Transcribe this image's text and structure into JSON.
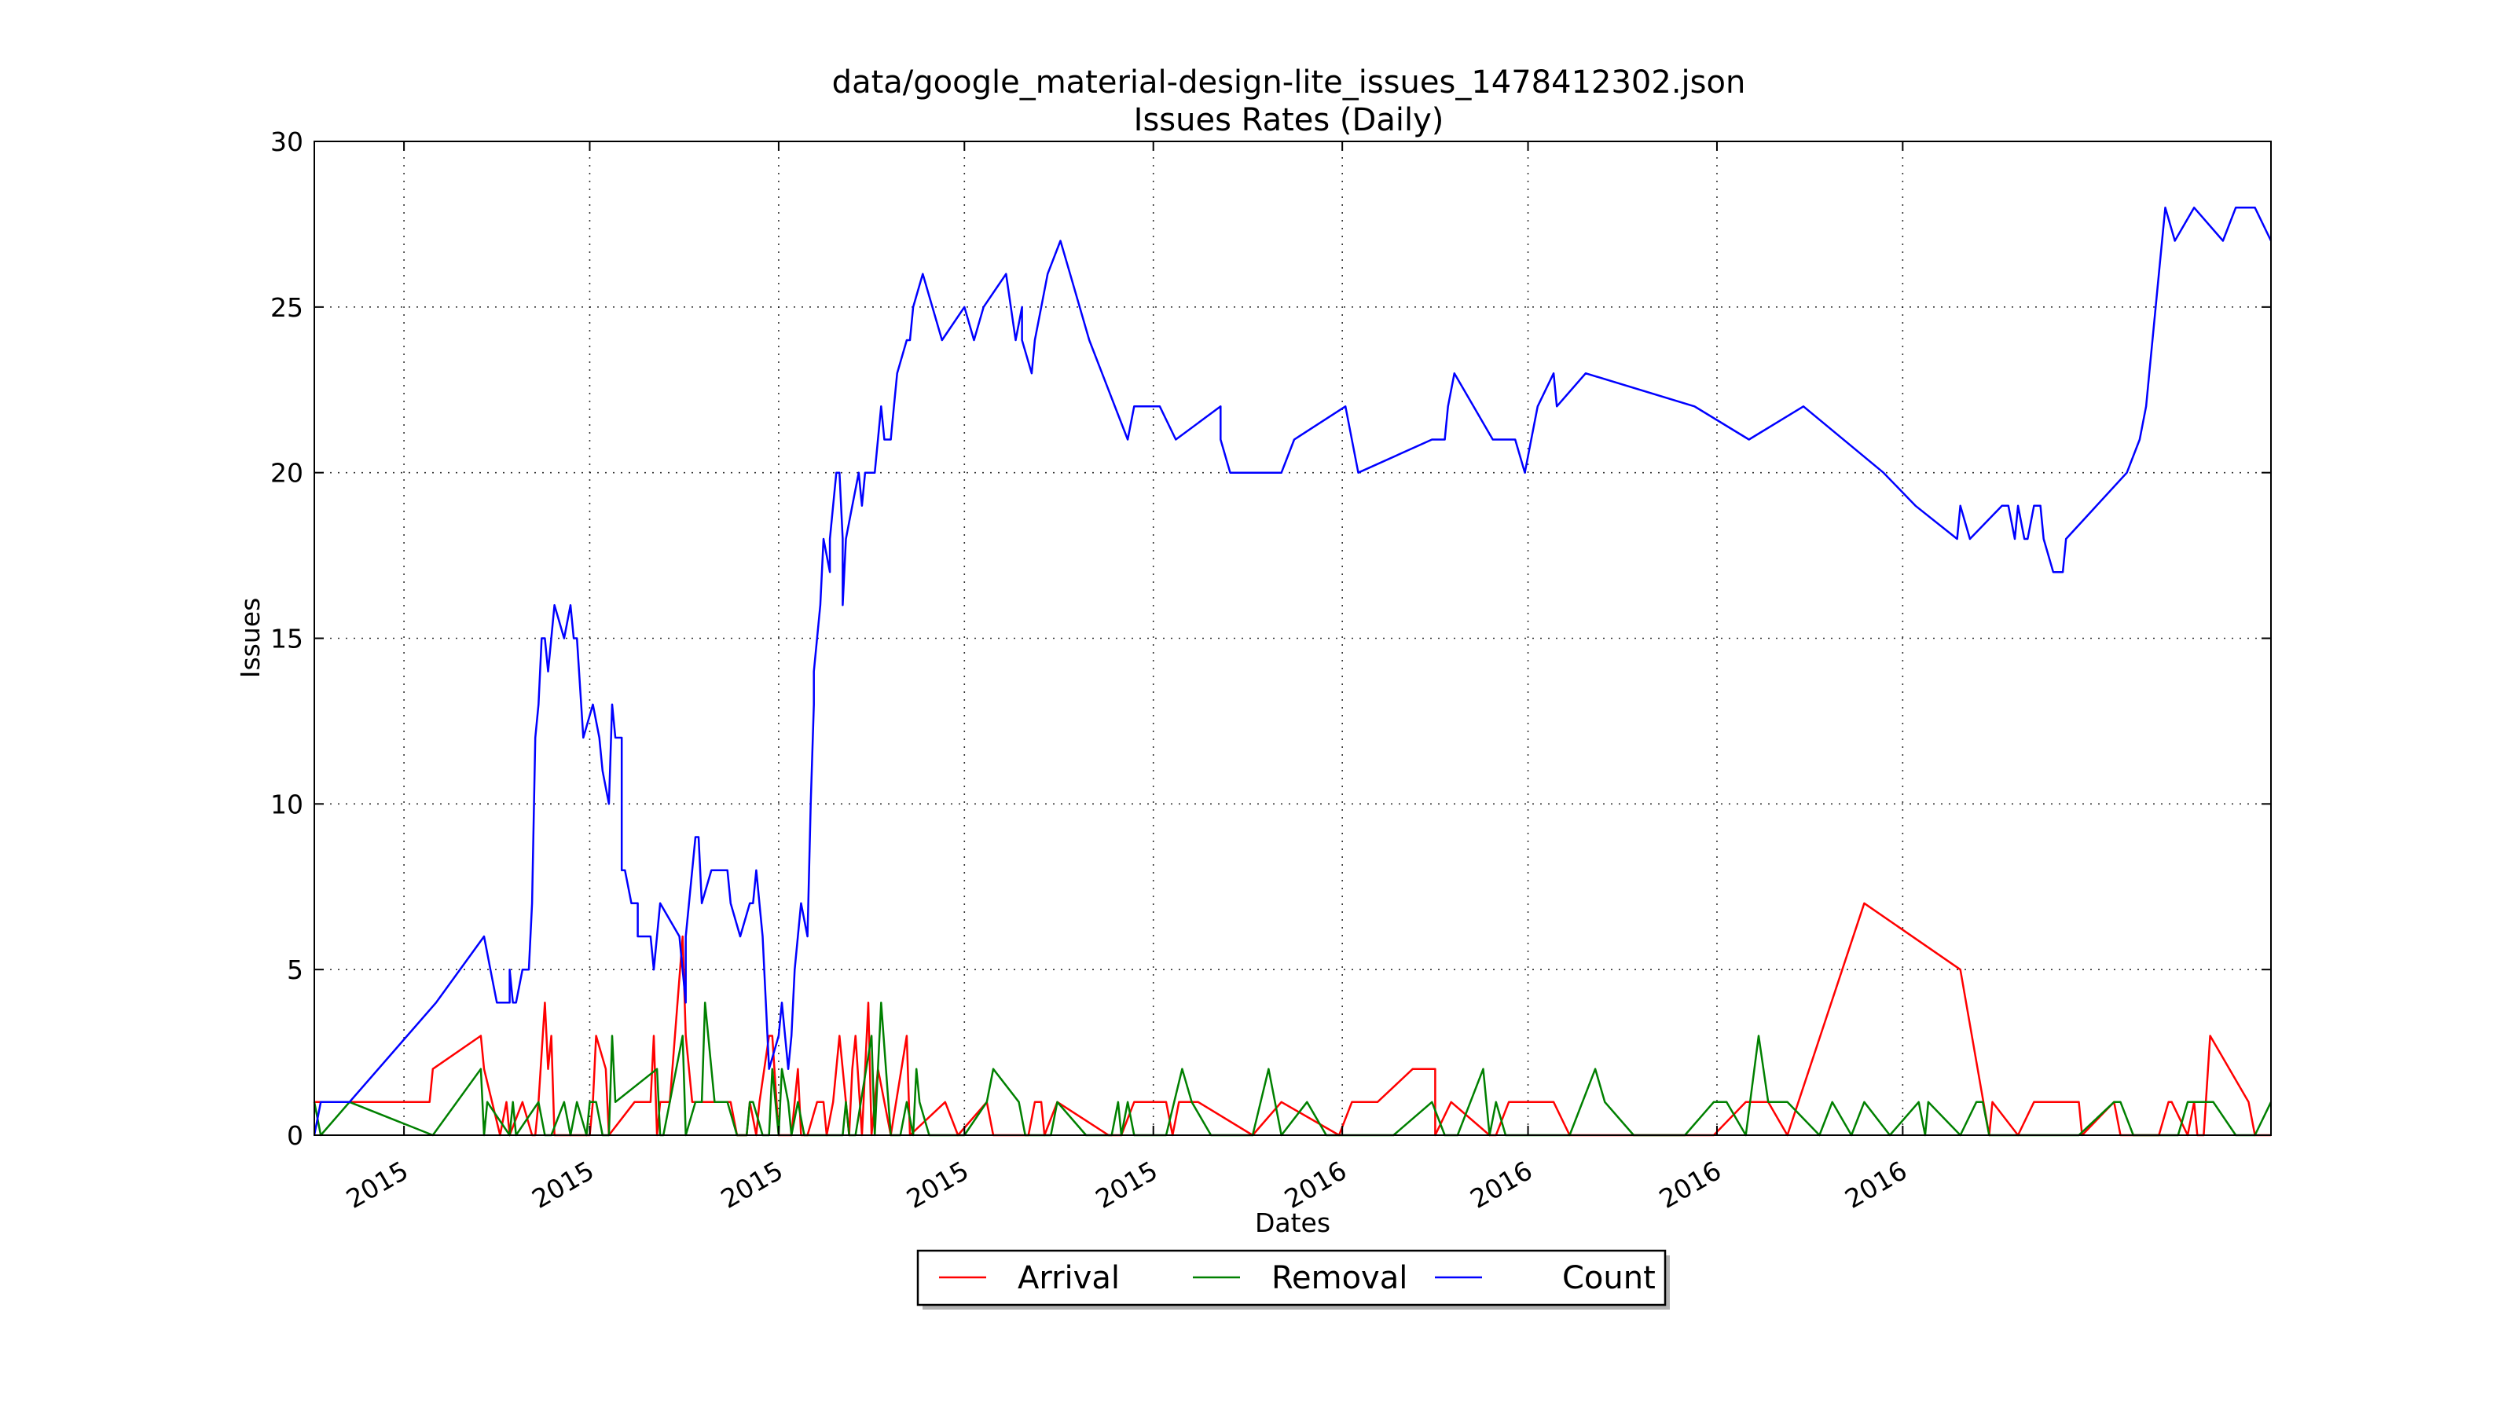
{
  "chart_data": {
    "type": "line",
    "title": "data/google_material-design-lite_issues_1478412302.json",
    "subtitle": "Issues Rates (Daily)",
    "xlabel": "Dates",
    "ylabel": "Issues",
    "ylim": [
      0,
      30
    ],
    "yticks": [
      0,
      5,
      10,
      15,
      20,
      25,
      30
    ],
    "xlim": [
      0,
      611
    ],
    "xticks": [
      {
        "x": 28,
        "label": "2015"
      },
      {
        "x": 86,
        "label": "2015"
      },
      {
        "x": 145,
        "label": "2015"
      },
      {
        "x": 203,
        "label": "2015"
      },
      {
        "x": 262,
        "label": "2015"
      },
      {
        "x": 321,
        "label": "2016"
      },
      {
        "x": 379,
        "label": "2016"
      },
      {
        "x": 438,
        "label": "2016"
      },
      {
        "x": 496,
        "label": "2016"
      }
    ],
    "grid": true,
    "legend": "bottom-center",
    "series": [
      {
        "name": "Arrival",
        "color": "#ff0000",
        "x": [
          0,
          11,
          36,
          37,
          52,
          53,
          58,
          60,
          61,
          65,
          68,
          69,
          70,
          72,
          73,
          74,
          75,
          86,
          87,
          88,
          91,
          92,
          100,
          105,
          106,
          107,
          108,
          111,
          115,
          116,
          118,
          120,
          121,
          129,
          130,
          132,
          134,
          135,
          136,
          138,
          139,
          142,
          143,
          145,
          146,
          149,
          150,
          151,
          152,
          154,
          157,
          158,
          159,
          160,
          162,
          164,
          167,
          168,
          169,
          171,
          173,
          174,
          176,
          180,
          185,
          186,
          197,
          201,
          210,
          212,
          218,
          222,
          223,
          225,
          227,
          228,
          232,
          248,
          251,
          252,
          256,
          266,
          268,
          270,
          276,
          293,
          302,
          320,
          324,
          332,
          343,
          350,
          350,
          355,
          367,
          369,
          373,
          387,
          392,
          437,
          447,
          454,
          460,
          484,
          514,
          523,
          524,
          532,
          537,
          551,
          552,
          562,
          564,
          568,
          576,
          579,
          580,
          585,
          587,
          588,
          590,
          592,
          604,
          606,
          611
        ],
        "y": [
          1,
          1,
          1,
          2,
          3,
          2,
          0,
          1,
          0,
          1,
          0,
          0,
          1,
          4,
          2,
          3,
          0,
          0,
          1,
          3,
          2,
          0,
          1,
          1,
          3,
          0,
          1,
          1,
          6,
          3,
          1,
          1,
          1,
          1,
          1,
          0,
          0,
          0,
          1,
          0,
          1,
          3,
          3,
          0,
          0,
          0,
          1,
          2,
          0,
          0,
          1,
          1,
          1,
          0,
          1,
          3,
          0,
          2,
          3,
          0,
          4,
          0,
          2,
          0,
          3,
          0,
          1,
          0,
          1,
          0,
          0,
          0,
          0,
          1,
          1,
          0,
          1,
          0,
          0,
          0,
          1,
          1,
          0,
          1,
          1,
          0,
          1,
          0,
          1,
          1,
          2,
          2,
          0,
          1,
          0,
          0,
          1,
          1,
          0,
          0,
          1,
          1,
          0,
          7,
          5,
          0,
          1,
          0,
          1,
          1,
          0,
          1,
          0,
          0,
          0,
          1,
          1,
          0,
          1,
          0,
          0,
          3,
          1,
          0,
          0
        ]
      },
      {
        "name": "Removal",
        "color": "#008000",
        "x": [
          0,
          2,
          11,
          37,
          52,
          53,
          54,
          61,
          62,
          63,
          70,
          72,
          74,
          78,
          80,
          82,
          85,
          86,
          88,
          90,
          92,
          93,
          94,
          107,
          108,
          109,
          115,
          116,
          119,
          120,
          121,
          122,
          125,
          129,
          132,
          135,
          136,
          137,
          140,
          142,
          143,
          145,
          146,
          148,
          149,
          151,
          153,
          158,
          162,
          165,
          166,
          167,
          169,
          174,
          175,
          177,
          180,
          183,
          185,
          187,
          188,
          189,
          192,
          193,
          195,
          196,
          198,
          201,
          203,
          210,
          212,
          220,
          222,
          223,
          227,
          228,
          230,
          232,
          241,
          248,
          249,
          251,
          252,
          254,
          256,
          259,
          266,
          271,
          274,
          280,
          284,
          288,
          290,
          293,
          298,
          302,
          310,
          316,
          326,
          337,
          349,
          353,
          355,
          357,
          365,
          367,
          369,
          372,
          373,
          376,
          379,
          382,
          387,
          392,
          400,
          403,
          412,
          416,
          428,
          437,
          441,
          447,
          451,
          454,
          460,
          470,
          474,
          480,
          484,
          492,
          501,
          503,
          504,
          514,
          519,
          521,
          523,
          524,
          532,
          537,
          548,
          551,
          562,
          564,
          568,
          576,
          582,
          585,
          593,
          600,
          606,
          611
        ],
        "y": [
          1,
          0,
          1,
          0,
          2,
          0,
          1,
          0,
          1,
          0,
          1,
          0,
          0,
          1,
          0,
          1,
          0,
          1,
          1,
          0,
          0,
          3,
          1,
          2,
          0,
          0,
          3,
          0,
          1,
          1,
          1,
          4,
          1,
          1,
          0,
          0,
          1,
          1,
          0,
          0,
          2,
          0,
          2,
          1,
          0,
          1,
          0,
          0,
          0,
          0,
          1,
          0,
          0,
          3,
          0,
          4,
          0,
          0,
          1,
          0,
          2,
          1,
          0,
          0,
          0,
          0,
          0,
          0,
          0,
          1,
          2,
          1,
          0,
          0,
          0,
          0,
          0,
          1,
          0,
          0,
          0,
          1,
          0,
          1,
          0,
          0,
          0,
          2,
          1,
          0,
          0,
          0,
          0,
          0,
          2,
          0,
          1,
          0,
          0,
          0,
          1,
          0,
          0,
          0,
          2,
          0,
          1,
          0,
          0,
          0,
          0,
          0,
          0,
          0,
          2,
          1,
          0,
          0,
          0,
          1,
          1,
          0,
          3,
          1,
          1,
          0,
          1,
          0,
          1,
          0,
          1,
          0,
          1,
          0,
          1,
          1,
          0,
          0,
          0,
          0,
          0,
          0,
          1,
          1,
          0,
          0,
          0,
          1,
          1,
          0,
          0,
          1
        ]
      },
      {
        "name": "Count",
        "color": "#0000ff",
        "x": [
          0,
          2,
          11,
          38,
          53,
          55,
          57,
          61,
          61,
          62,
          63,
          65,
          67,
          68,
          69,
          70,
          71,
          72,
          73,
          75,
          78,
          80,
          81,
          82,
          84,
          87,
          89,
          90,
          92,
          93,
          93,
          94,
          96,
          96,
          97,
          99,
          100,
          101,
          101,
          102,
          105,
          106,
          108,
          114,
          116,
          116,
          118,
          119,
          120,
          121,
          124,
          126,
          129,
          130,
          133,
          136,
          137,
          138,
          140,
          142,
          145,
          146,
          148,
          149,
          150,
          152,
          154,
          155,
          156,
          156,
          158,
          159,
          161,
          161,
          162,
          163,
          164,
          165,
          165,
          166,
          168,
          170,
          171,
          172,
          175,
          177,
          178,
          180,
          181,
          182,
          185,
          186,
          187,
          190,
          196,
          203,
          206,
          209,
          216,
          219,
          221,
          221,
          224,
          225,
          227,
          229,
          233,
          236,
          242,
          254,
          256,
          264,
          269,
          283,
          283,
          286,
          286,
          302,
          306,
          322,
          326,
          349,
          353,
          354,
          356,
          368,
          375,
          378,
          380,
          382,
          387,
          388,
          397,
          431,
          448,
          465,
          490,
          500,
          513,
          514,
          517,
          527,
          529,
          531,
          532,
          534,
          535,
          537,
          539,
          540,
          543,
          546,
          547,
          566,
          570,
          572,
          573,
          574,
          577,
          578,
          581,
          587,
          596,
          600,
          606,
          611
        ],
        "y": [
          0,
          1,
          1,
          4,
          6,
          5,
          4,
          4,
          5,
          4,
          4,
          5,
          5,
          7,
          12,
          13,
          15,
          15,
          14,
          16,
          15,
          16,
          15,
          15,
          12,
          13,
          12,
          11,
          10,
          13,
          13,
          12,
          12,
          8,
          8,
          7,
          7,
          7,
          6,
          6,
          6,
          5,
          7,
          6,
          4,
          6,
          8,
          9,
          9,
          7,
          8,
          8,
          8,
          7,
          6,
          7,
          7,
          8,
          6,
          2,
          3,
          4,
          2,
          3,
          5,
          7,
          6,
          10,
          13,
          14,
          16,
          18,
          17,
          18,
          19,
          20,
          20,
          18,
          16,
          18,
          19,
          20,
          19,
          20,
          20,
          22,
          21,
          21,
          22,
          23,
          24,
          24,
          25,
          26,
          24,
          25,
          24,
          25,
          26,
          24,
          25,
          24,
          23,
          24,
          25,
          26,
          27,
          26,
          24,
          21,
          22,
          22,
          21,
          22,
          21,
          20,
          20,
          20,
          21,
          22,
          20,
          21,
          21,
          22,
          23,
          21,
          21,
          20,
          21,
          22,
          23,
          22,
          23,
          22,
          21,
          22,
          20,
          19,
          18,
          19,
          18,
          19,
          19,
          18,
          19,
          18,
          18,
          19,
          19,
          18,
          17,
          17,
          18,
          20,
          21,
          22,
          23,
          24,
          27,
          28,
          27,
          28,
          27,
          28,
          28,
          27
        ]
      }
    ]
  }
}
